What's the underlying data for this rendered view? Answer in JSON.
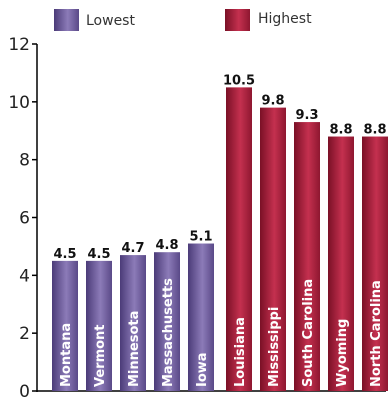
{
  "chart_data": {
    "type": "bar",
    "title": "",
    "xlabel": "",
    "ylabel": "",
    "ylim": [
      0,
      12
    ],
    "yticks": [
      0,
      2,
      4,
      6,
      8,
      10,
      12
    ],
    "grid": false,
    "legend_position": "top",
    "series": [
      {
        "name": "Lowest",
        "color": "#5e4b8b",
        "categories": [
          "Montana",
          "Vermont",
          "Minnesota",
          "Massachusetts",
          "Iowa"
        ],
        "values": [
          4.5,
          4.5,
          4.7,
          4.8,
          5.1
        ],
        "value_labels": [
          "4.5",
          "4.5",
          "4.7",
          "4.8",
          "5.1"
        ]
      },
      {
        "name": "Highest",
        "color": "#9b1b35",
        "categories": [
          "Louisiana",
          "Mississippi",
          "South Carolina",
          "Wyoming",
          "North Carolina"
        ],
        "values": [
          10.5,
          9.8,
          9.3,
          8.8,
          8.8
        ],
        "value_labels": [
          "10.5",
          "9.8",
          "9.3",
          "8.8",
          "8.8"
        ]
      }
    ]
  },
  "colors": {
    "lowest_dark": "#4b3b78",
    "lowest_light": "#8c7bb8",
    "highest_dark": "#7a1026",
    "highest_light": "#c4304f",
    "axis": "#000000"
  }
}
